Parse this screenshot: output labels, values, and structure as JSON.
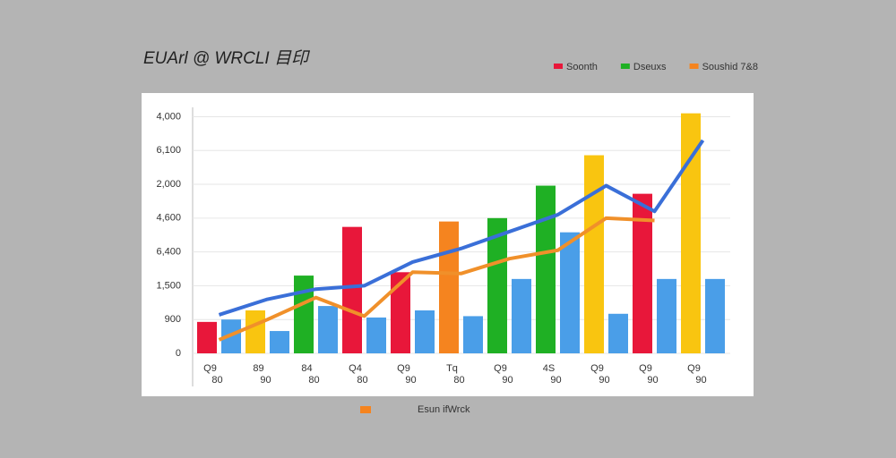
{
  "chart_data": {
    "type": "bar-line",
    "title": "EUArl @ WRCLI 目印",
    "legend": [
      {
        "label": "Soonth",
        "color": "#e8173a"
      },
      {
        "label": "Dseuxs",
        "color": "#1fb024"
      },
      {
        "label": "Soushid 7&8",
        "color": "#f5841f"
      }
    ],
    "bottom_legend": {
      "label": "Esun ifWrck",
      "color": "#f5841f"
    },
    "categories": [
      "Q9\n80",
      "89\n90",
      "84\n80",
      "Q4\n80",
      "Q9\n90",
      "Tq\n80",
      "Q9\n90",
      "4S\n90",
      "Q9\n90",
      "Q9\n90",
      "Q9\n90"
    ],
    "ylim": [
      0,
      7.7
    ],
    "yticks": [
      {
        "value": 0,
        "label": "0"
      },
      {
        "value": 1,
        "label": "900"
      },
      {
        "value": 2,
        "label": "1,500"
      },
      {
        "value": 3,
        "label": "6,400"
      },
      {
        "value": 4,
        "label": "4,600"
      },
      {
        "value": 5,
        "label": "2,000"
      },
      {
        "value": 6,
        "label": "6,100"
      },
      {
        "value": 7,
        "label": "4,000"
      }
    ],
    "grid": true,
    "series": [
      {
        "kind": "bar",
        "colors": [
          "#e8173a",
          "#f9c510",
          "#1fb024",
          "#e8173a",
          "#e8173a",
          "#f5841f",
          "#1fb024",
          "#1fb024",
          "#f9c510",
          "#e8173a",
          "#f9c510"
        ],
        "values": [
          0.93,
          1.27,
          2.3,
          3.74,
          2.4,
          3.9,
          4.0,
          4.96,
          5.86,
          4.72,
          7.1
        ]
      },
      {
        "kind": "bar",
        "color": "#4a9ee8",
        "values": [
          1.0,
          0.66,
          1.4,
          1.06,
          1.27,
          1.1,
          2.2,
          3.58,
          1.17,
          2.2,
          2.2
        ]
      },
      {
        "kind": "line",
        "color": "#3a6fd8",
        "values": [
          1.14,
          1.6,
          1.9,
          2.0,
          2.7,
          3.1,
          3.6,
          4.1,
          4.96,
          4.2,
          6.3
        ]
      },
      {
        "kind": "line",
        "color": "#f0902a",
        "values": [
          0.4,
          1.0,
          1.65,
          1.1,
          2.4,
          2.36,
          2.8,
          3.05,
          4.0,
          3.93,
          null
        ]
      }
    ]
  }
}
